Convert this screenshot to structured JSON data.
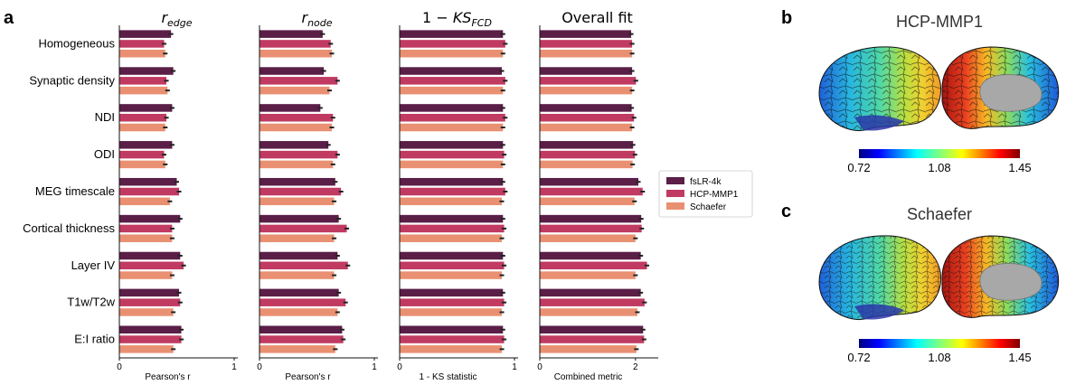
{
  "panel_labels": {
    "a": "a",
    "b": "b",
    "c": "c"
  },
  "colors": {
    "fsLR-4k": "#5a1e47",
    "HCP-MMP1": "#c03a62",
    "Schaefer": "#e99072",
    "error": "#222222"
  },
  "chart_data": {
    "type": "bar",
    "orientation": "horizontal",
    "categories": [
      "Homogeneous",
      "Synaptic density",
      "NDI",
      "ODI",
      "MEG timescale",
      "Cortical thickness",
      "Layer IV",
      "T1w/T2w",
      "E:I ratio"
    ],
    "legend": [
      "fsLR-4k",
      "HCP-MMP1",
      "Schaefer"
    ],
    "legend_position": "right",
    "subplots": [
      {
        "title_base": "r",
        "title_sub": "edge",
        "title_prefix": "",
        "xlabel": "Pearson's r",
        "xlim": [
          0,
          1
        ],
        "xticks": [
          "0",
          "1"
        ],
        "series": [
          {
            "name": "fsLR-4k",
            "values": [
              0.45,
              0.47,
              0.46,
              0.46,
              0.5,
              0.53,
              0.53,
              0.52,
              0.54
            ]
          },
          {
            "name": "HCP-MMP1",
            "values": [
              0.39,
              0.41,
              0.41,
              0.39,
              0.52,
              0.46,
              0.56,
              0.53,
              0.54
            ]
          },
          {
            "name": "Schaefer",
            "values": [
              0.4,
              0.42,
              0.4,
              0.4,
              0.44,
              0.46,
              0.46,
              0.47,
              0.47
            ]
          }
        ]
      },
      {
        "title_base": "r",
        "title_sub": "node",
        "title_prefix": "",
        "xlabel": "Pearson's r",
        "xlim": [
          0,
          1
        ],
        "xticks": [
          "0",
          "1"
        ],
        "series": [
          {
            "name": "fsLR-4k",
            "values": [
              0.55,
              0.56,
              0.53,
              0.6,
              0.66,
              0.69,
              0.68,
              0.69,
              0.72
            ]
          },
          {
            "name": "HCP-MMP1",
            "values": [
              0.62,
              0.68,
              0.64,
              0.68,
              0.71,
              0.76,
              0.77,
              0.75,
              0.73
            ]
          },
          {
            "name": "Schaefer",
            "values": [
              0.63,
              0.61,
              0.63,
              0.64,
              0.65,
              0.65,
              0.65,
              0.68,
              0.66
            ]
          }
        ]
      },
      {
        "title_base": "KS",
        "title_sub": "FCD",
        "title_prefix": "1 − ",
        "xlabel": "1 - KS statistic",
        "xlim": [
          0,
          1
        ],
        "xticks": [
          "0",
          "1"
        ],
        "series": [
          {
            "name": "fsLR-4k",
            "values": [
              0.9,
              0.89,
              0.9,
              0.9,
              0.9,
              0.9,
              0.9,
              0.9,
              0.9
            ]
          },
          {
            "name": "HCP-MMP1",
            "values": [
              0.92,
              0.92,
              0.92,
              0.91,
              0.92,
              0.91,
              0.91,
              0.91,
              0.91
            ]
          },
          {
            "name": "Schaefer",
            "values": [
              0.9,
              0.9,
              0.9,
              0.9,
              0.89,
              0.89,
              0.89,
              0.89,
              0.89
            ]
          }
        ]
      },
      {
        "title_base": "Overall fit",
        "title_sub": "",
        "title_prefix": "",
        "xlabel": "Combined metric",
        "xlim": [
          0,
          2.4
        ],
        "xticks": [
          "0",
          "2"
        ],
        "series": [
          {
            "name": "fsLR-4k",
            "values": [
              1.91,
              1.93,
              1.92,
              1.95,
              2.06,
              2.12,
              2.11,
              2.11,
              2.16
            ]
          },
          {
            "name": "HCP-MMP1",
            "values": [
              1.93,
              2.01,
              1.97,
              1.99,
              2.15,
              2.13,
              2.24,
              2.19,
              2.18
            ]
          },
          {
            "name": "Schaefer",
            "values": [
              1.93,
              1.93,
              1.93,
              1.94,
              1.98,
              2.0,
              2.0,
              2.04,
              2.02
            ]
          }
        ]
      }
    ]
  },
  "brain_panels": [
    {
      "title": "HCP-MMP1",
      "colorbar_ticks": [
        "0.72",
        "1.08",
        "1.45"
      ]
    },
    {
      "title": "Schaefer",
      "colorbar_ticks": [
        "0.72",
        "1.08",
        "1.45"
      ]
    }
  ]
}
